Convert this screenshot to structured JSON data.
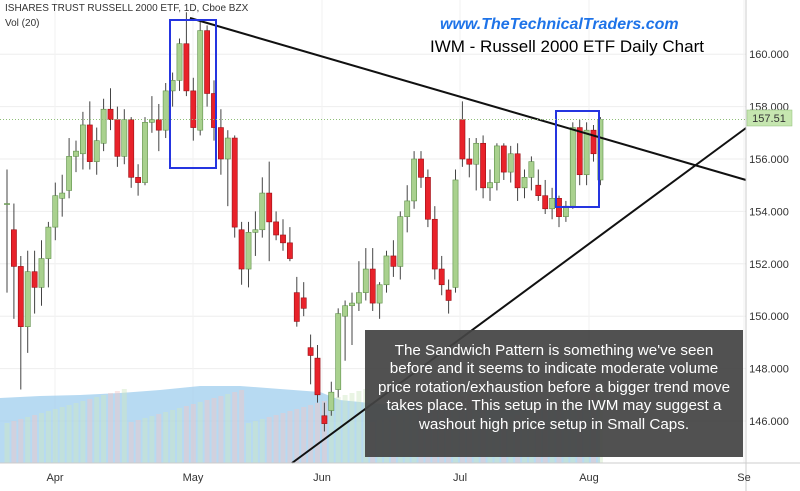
{
  "header": {
    "symbol_line": "ISHARES TRUST RUSSELL 2000 ETF, 1D, Cboe BZX",
    "volume_label": "Vol (20)",
    "website": "www.TheTechnicalTraders.com",
    "chart_title": "IWM - Russell 2000 ETF Daily Chart"
  },
  "annotation": {
    "text": "The Sandwich Pattern is something we've seen before and it seems to indicate moderate volume price rotation/exhaustion before a bigger trend move takes place.  This setup in the IWM may suggest a washout high price setup in Small Caps."
  },
  "colors": {
    "up": "#a9d18e",
    "down": "#e8222a",
    "highlight_box": "#2535e0",
    "trendline": "#111111",
    "last_price_bg": "#c6e6b0",
    "volume_fill": "#9fcdee"
  },
  "chart_data": {
    "type": "candlestick",
    "title": "IWM - Russell 2000 ETF Daily Chart",
    "yaxis_ticks": [
      146,
      148,
      150,
      152,
      154,
      156,
      158,
      160
    ],
    "ylim": [
      144.2,
      161.9
    ],
    "xaxis_labels": [
      "Apr",
      "May",
      "Jun",
      "Jul",
      "Aug",
      "Se"
    ],
    "last_price": "157.51",
    "candles": [
      {
        "o": 154.3,
        "h": 155.6,
        "l": 150.9,
        "c": 154.3
      },
      {
        "o": 153.3,
        "h": 154.3,
        "l": 149.9,
        "c": 151.9
      },
      {
        "o": 151.9,
        "h": 152.3,
        "l": 147.2,
        "c": 149.6
      },
      {
        "o": 149.6,
        "h": 152.5,
        "l": 148.6,
        "c": 151.7
      },
      {
        "o": 151.7,
        "h": 152.5,
        "l": 150.1,
        "c": 151.1
      },
      {
        "o": 151.1,
        "h": 152.9,
        "l": 150.4,
        "c": 152.2
      },
      {
        "o": 152.2,
        "h": 153.6,
        "l": 151.1,
        "c": 153.4
      },
      {
        "o": 153.4,
        "h": 155.1,
        "l": 152.9,
        "c": 154.6
      },
      {
        "o": 154.5,
        "h": 155.4,
        "l": 153.8,
        "c": 154.7
      },
      {
        "o": 154.8,
        "h": 156.8,
        "l": 154.5,
        "c": 156.1
      },
      {
        "o": 156.1,
        "h": 156.7,
        "l": 155.5,
        "c": 156.3
      },
      {
        "o": 156.2,
        "h": 157.8,
        "l": 155.6,
        "c": 157.3
      },
      {
        "o": 157.3,
        "h": 158.2,
        "l": 155.6,
        "c": 155.9
      },
      {
        "o": 155.9,
        "h": 157.2,
        "l": 155.4,
        "c": 156.7
      },
      {
        "o": 156.6,
        "h": 158.3,
        "l": 156.3,
        "c": 157.9
      },
      {
        "o": 157.9,
        "h": 158.7,
        "l": 157.1,
        "c": 157.5
      },
      {
        "o": 157.5,
        "h": 158.0,
        "l": 155.7,
        "c": 156.1
      },
      {
        "o": 156.1,
        "h": 157.9,
        "l": 155.8,
        "c": 157.5
      },
      {
        "o": 157.5,
        "h": 157.6,
        "l": 154.9,
        "c": 155.3
      },
      {
        "o": 155.3,
        "h": 155.8,
        "l": 154.6,
        "c": 155.1
      },
      {
        "o": 155.1,
        "h": 157.6,
        "l": 155.0,
        "c": 157.4
      },
      {
        "o": 157.4,
        "h": 158.4,
        "l": 157.0,
        "c": 157.5
      },
      {
        "o": 157.5,
        "h": 158.1,
        "l": 156.3,
        "c": 157.1
      },
      {
        "o": 157.1,
        "h": 158.9,
        "l": 156.8,
        "c": 158.6
      },
      {
        "o": 158.6,
        "h": 159.3,
        "l": 158.0,
        "c": 159.0
      },
      {
        "o": 159.0,
        "h": 160.6,
        "l": 158.6,
        "c": 160.4
      },
      {
        "o": 160.4,
        "h": 161.6,
        "l": 158.4,
        "c": 158.6
      },
      {
        "o": 158.6,
        "h": 159.1,
        "l": 156.7,
        "c": 157.2
      },
      {
        "o": 157.1,
        "h": 161.3,
        "l": 156.9,
        "c": 160.9
      },
      {
        "o": 160.9,
        "h": 161.1,
        "l": 158.0,
        "c": 158.5
      },
      {
        "o": 158.5,
        "h": 159.0,
        "l": 156.7,
        "c": 157.2
      },
      {
        "o": 157.2,
        "h": 157.9,
        "l": 155.4,
        "c": 156.0
      },
      {
        "o": 156.0,
        "h": 157.1,
        "l": 154.2,
        "c": 156.8
      },
      {
        "o": 156.8,
        "h": 156.9,
        "l": 153.0,
        "c": 153.4
      },
      {
        "o": 153.3,
        "h": 153.6,
        "l": 151.2,
        "c": 151.8
      },
      {
        "o": 151.8,
        "h": 153.6,
        "l": 151.1,
        "c": 153.2
      },
      {
        "o": 153.2,
        "h": 154.0,
        "l": 152.3,
        "c": 153.3
      },
      {
        "o": 153.3,
        "h": 155.3,
        "l": 153.0,
        "c": 154.7
      },
      {
        "o": 154.7,
        "h": 155.9,
        "l": 152.1,
        "c": 153.6
      },
      {
        "o": 153.6,
        "h": 154.0,
        "l": 152.9,
        "c": 153.1
      },
      {
        "o": 153.1,
        "h": 153.7,
        "l": 152.5,
        "c": 152.8
      },
      {
        "o": 152.8,
        "h": 153.4,
        "l": 152.1,
        "c": 152.2
      },
      {
        "o": 150.9,
        "h": 151.5,
        "l": 149.6,
        "c": 149.8
      },
      {
        "o": 150.7,
        "h": 151.3,
        "l": 150.0,
        "c": 150.3
      },
      {
        "o": 148.8,
        "h": 149.3,
        "l": 147.4,
        "c": 148.5
      },
      {
        "o": 148.4,
        "h": 148.9,
        "l": 146.7,
        "c": 147.0
      },
      {
        "o": 146.2,
        "h": 146.7,
        "l": 145.6,
        "c": 145.9
      },
      {
        "o": 146.4,
        "h": 147.5,
        "l": 146.2,
        "c": 147.1
      },
      {
        "o": 147.2,
        "h": 150.3,
        "l": 146.9,
        "c": 150.1
      },
      {
        "o": 150.0,
        "h": 150.6,
        "l": 148.3,
        "c": 150.4
      },
      {
        "o": 150.4,
        "h": 150.9,
        "l": 148.9,
        "c": 150.5
      },
      {
        "o": 150.5,
        "h": 152.1,
        "l": 150.2,
        "c": 150.9
      },
      {
        "o": 150.9,
        "h": 152.6,
        "l": 150.6,
        "c": 151.8
      },
      {
        "o": 151.8,
        "h": 152.6,
        "l": 150.2,
        "c": 150.5
      },
      {
        "o": 150.5,
        "h": 151.3,
        "l": 149.9,
        "c": 151.2
      },
      {
        "o": 151.2,
        "h": 152.5,
        "l": 150.9,
        "c": 152.3
      },
      {
        "o": 152.3,
        "h": 152.9,
        "l": 151.5,
        "c": 151.9
      },
      {
        "o": 151.9,
        "h": 154.0,
        "l": 151.4,
        "c": 153.8
      },
      {
        "o": 153.8,
        "h": 155.0,
        "l": 153.2,
        "c": 154.4
      },
      {
        "o": 154.4,
        "h": 156.3,
        "l": 154.1,
        "c": 156.0
      },
      {
        "o": 156.0,
        "h": 156.3,
        "l": 154.9,
        "c": 155.3
      },
      {
        "o": 155.3,
        "h": 155.6,
        "l": 153.4,
        "c": 153.7
      },
      {
        "o": 153.7,
        "h": 154.2,
        "l": 151.4,
        "c": 151.8
      },
      {
        "o": 151.8,
        "h": 152.3,
        "l": 150.8,
        "c": 151.2
      },
      {
        "o": 151.0,
        "h": 151.4,
        "l": 150.1,
        "c": 150.6
      },
      {
        "o": 151.1,
        "h": 155.6,
        "l": 150.9,
        "c": 155.2
      },
      {
        "o": 157.5,
        "h": 158.2,
        "l": 155.7,
        "c": 156.0
      },
      {
        "o": 156.0,
        "h": 156.8,
        "l": 155.3,
        "c": 155.8
      },
      {
        "o": 155.8,
        "h": 156.8,
        "l": 154.8,
        "c": 156.6
      },
      {
        "o": 156.6,
        "h": 156.9,
        "l": 154.5,
        "c": 154.9
      },
      {
        "o": 154.9,
        "h": 155.6,
        "l": 154.4,
        "c": 155.1
      },
      {
        "o": 155.1,
        "h": 156.6,
        "l": 154.8,
        "c": 156.5
      },
      {
        "o": 156.5,
        "h": 156.6,
        "l": 155.2,
        "c": 155.5
      },
      {
        "o": 155.5,
        "h": 156.5,
        "l": 155.1,
        "c": 156.2
      },
      {
        "o": 156.2,
        "h": 156.6,
        "l": 154.4,
        "c": 154.9
      },
      {
        "o": 154.9,
        "h": 155.6,
        "l": 154.5,
        "c": 155.3
      },
      {
        "o": 155.3,
        "h": 156.1,
        "l": 154.8,
        "c": 155.9
      },
      {
        "o": 155.0,
        "h": 155.6,
        "l": 154.4,
        "c": 154.6
      },
      {
        "o": 154.6,
        "h": 155.2,
        "l": 153.9,
        "c": 154.1
      },
      {
        "o": 154.1,
        "h": 154.9,
        "l": 153.7,
        "c": 154.5
      },
      {
        "o": 154.5,
        "h": 154.6,
        "l": 153.4,
        "c": 153.8
      },
      {
        "o": 153.8,
        "h": 154.4,
        "l": 153.6,
        "c": 154.2
      },
      {
        "o": 154.2,
        "h": 157.4,
        "l": 154.1,
        "c": 157.2
      },
      {
        "o": 157.2,
        "h": 157.5,
        "l": 155.0,
        "c": 155.4
      },
      {
        "o": 155.4,
        "h": 157.4,
        "l": 155.0,
        "c": 157.1
      },
      {
        "o": 157.1,
        "h": 157.3,
        "l": 155.9,
        "c": 156.2
      },
      {
        "o": 155.2,
        "h": 157.6,
        "l": 155.0,
        "c": 157.5
      }
    ]
  }
}
